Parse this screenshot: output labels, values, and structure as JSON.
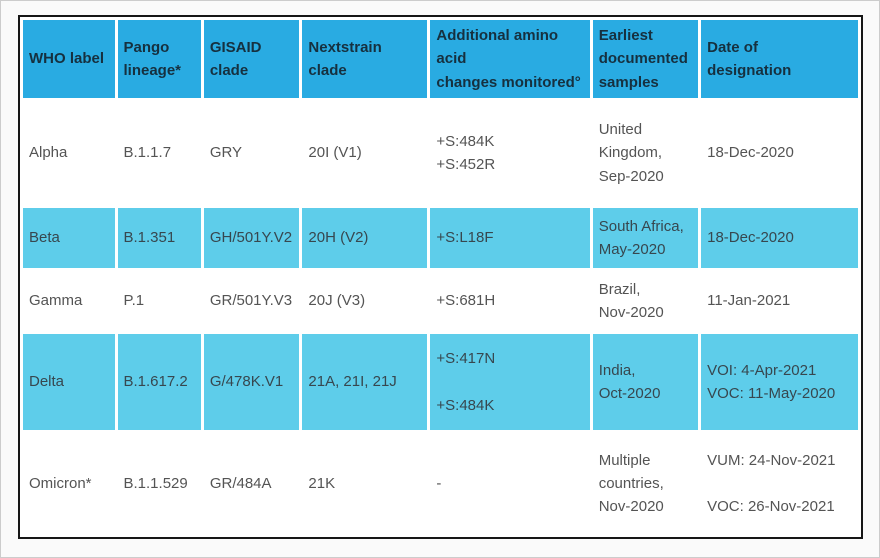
{
  "colors": {
    "page_bg": "#fafafa",
    "page_border": "#cccccc",
    "header_bg": "#29abe2",
    "row_highlight_bg": "#5ecdea",
    "header_text": "#16303f",
    "body_text": "#545454",
    "highlight_text": "#37474f",
    "table_border": "#161616"
  },
  "table": {
    "columns": [
      {
        "label": "WHO label"
      },
      {
        "label": "Pango\nlineage*"
      },
      {
        "label": "GISAID\nclade"
      },
      {
        "label": "Nextstrain clade"
      },
      {
        "label": "Additional amino\nacid\nchanges monitored°"
      },
      {
        "label": "Earliest\ndocumented\nsamples"
      },
      {
        "label": "Date of\ndesignation"
      }
    ],
    "rows": [
      {
        "highlighted": false,
        "cells": [
          "Alpha",
          "B.1.1.7",
          "GRY",
          "20I (V1)",
          "+S:484K\n+S:452R",
          "United\nKingdom,\nSep-2020",
          "18-Dec-2020"
        ]
      },
      {
        "highlighted": true,
        "cells": [
          "Beta",
          "B.1.351",
          "GH/501Y.V2",
          "20H (V2)",
          "+S:L18F",
          "South Africa,\nMay-2020",
          "18-Dec-2020"
        ]
      },
      {
        "highlighted": false,
        "cells": [
          "Gamma",
          "P.1",
          "GR/501Y.V3",
          "20J (V3)",
          "+S:681H",
          "Brazil,\nNov-2020",
          "11-Jan-2021"
        ]
      },
      {
        "highlighted": true,
        "cells": [
          "Delta",
          "B.1.617.2",
          "G/478K.V1",
          "21A, 21I, 21J",
          "+S:417N\n\n+S:484K",
          "India,\nOct-2020",
          "VOI: 4-Apr-2021\nVOC: 11-May-2020"
        ]
      },
      {
        "highlighted": false,
        "cells": [
          "Omicron*",
          "B.1.1.529",
          "GR/484A",
          "21K",
          "-",
          "Multiple\ncountries,\nNov-2020",
          "VUM: 24-Nov-2021\n\nVOC: 26-Nov-2021"
        ]
      }
    ]
  }
}
